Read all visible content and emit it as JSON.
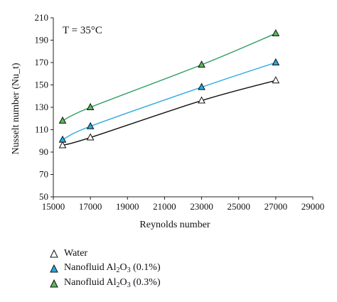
{
  "chart_data": {
    "type": "line",
    "annotation": "T = 35°C",
    "xlabel": "Reynolds number",
    "ylabel": "Nusselt number (Nu_t)",
    "xlim": [
      15000,
      29000
    ],
    "ylim": [
      50,
      210
    ],
    "xticks": [
      15000,
      17000,
      19000,
      21000,
      23000,
      25000,
      27000,
      29000
    ],
    "yticks": [
      50,
      70,
      90,
      110,
      130,
      150,
      170,
      190,
      210
    ],
    "x": [
      15500,
      17000,
      23000,
      27000
    ],
    "series": [
      {
        "name": "Water",
        "color": "#111111",
        "marker_fill": "#ffffff",
        "values": [
          96,
          103,
          136,
          154
        ]
      },
      {
        "name": "Nanofluid Al2O3 (0.1%)",
        "color": "#29a9df",
        "marker_fill": "#29a9df",
        "values": [
          101,
          113,
          148,
          170
        ]
      },
      {
        "name": "Nanofluid Al2O3 (0.3%)",
        "color": "#2e9e5e",
        "marker_fill": "#5cb85c",
        "values": [
          118,
          130,
          168,
          196
        ]
      }
    ],
    "legend_position": "bottom-left",
    "grid": false
  },
  "legend": {
    "water": "Water",
    "nf_prefix": "Nanofluid Al",
    "sub_2": "2",
    "mid_o": "O",
    "sub_3": "3",
    "pct1": " (0.1%)",
    "pct3": " (0.3%)"
  }
}
